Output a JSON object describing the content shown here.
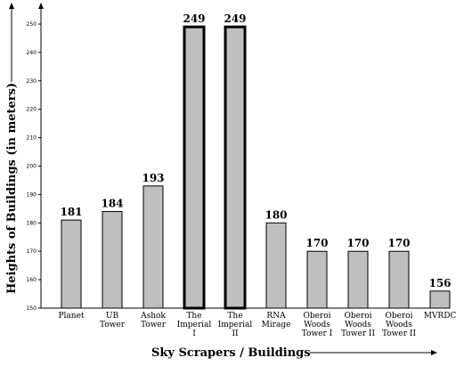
{
  "chart_data": {
    "type": "bar",
    "xlabel": "Sky Scrapers / Buildings",
    "ylabel": "Heights of Buildings (in meters)",
    "ylim": [
      150,
      250
    ],
    "yticks": [
      150,
      160,
      170,
      180,
      190,
      200,
      210,
      220,
      230,
      240,
      250
    ],
    "categories": [
      [
        "Planet"
      ],
      [
        "UB",
        "Tower"
      ],
      [
        "Ashok",
        "Tower"
      ],
      [
        "The",
        "Imperial",
        "I"
      ],
      [
        "The",
        "Imperial",
        "II"
      ],
      [
        "RNA",
        "Mirage"
      ],
      [
        "Oberoi",
        "Woods",
        "Tower I"
      ],
      [
        "Oberoi",
        "Woods",
        "Tower II"
      ],
      [
        "Oberoi",
        "Woods",
        "Tower II"
      ],
      [
        "MVRDC"
      ]
    ],
    "values": [
      181,
      184,
      193,
      249,
      249,
      180,
      170,
      170,
      170,
      156
    ],
    "bar_color": "#bfbfbf",
    "bar_stroke": "#000000",
    "grid": false
  }
}
